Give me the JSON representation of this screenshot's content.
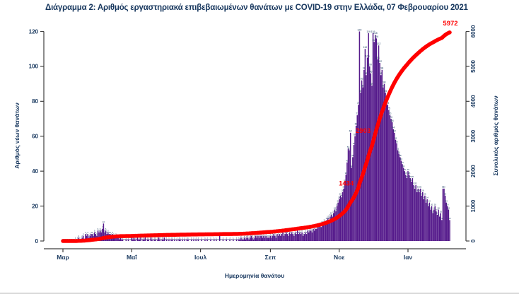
{
  "title": "Διάγραμμα 2: Αριθμός εργαστηριακά επιβεβαιωμένων θανάτων με COVID-19 στην Ελλάδα, 07 Φεβρουαρίου 2021",
  "colors": {
    "bars": "#551A8B",
    "line": "#FF0000",
    "text": "#17375E",
    "axis": "#3F3F3F"
  },
  "chart_data": {
    "type": "bar",
    "description": "Daily laboratory-confirmed COVID-19 deaths in Greece by date of death (bars, left axis) with cumulative total (red line, right axis), 01 Mar 2020 - 07 Feb 2021",
    "xlabel": "Ημερομηνία θανάτου",
    "ylabel_left": "Αριθμός νέων θανάτων",
    "ylabel_right": "Συνολικός αριθμός θανάτων",
    "x_start_date": "2020-03-01",
    "x_tick_labels": [
      "Μαρ",
      "Μαΐ",
      "Ιουλ",
      "Σεπ",
      "Νοε",
      "Ιαν"
    ],
    "x_tick_day_offsets": [
      0,
      61,
      122,
      184,
      245,
      306
    ],
    "y_left_ticks": [
      0,
      20,
      40,
      60,
      80,
      100,
      120
    ],
    "y_right_ticks": [
      0,
      1000,
      2000,
      3000,
      4000,
      5000,
      6000
    ],
    "ylim_left": [
      0,
      120
    ],
    "ylim_right": [
      0,
      6000
    ],
    "grid": false,
    "total_deaths": 5972,
    "annotations": [
      {
        "text": "1434",
        "value": 1434
      },
      {
        "text": "2903",
        "value": 2903
      },
      {
        "text": "5972",
        "value": 5972
      }
    ],
    "daily_deaths": [
      0,
      0,
      0,
      0,
      0,
      0,
      0,
      0,
      0,
      0,
      0,
      1,
      0,
      1,
      2,
      1,
      0,
      2,
      3,
      0,
      4,
      3,
      4,
      2,
      3,
      4,
      4,
      3,
      5,
      4,
      3,
      6,
      5,
      6,
      5,
      7,
      10,
      5,
      6,
      4,
      5,
      4,
      4,
      3,
      4,
      3,
      2,
      3,
      2,
      2,
      1,
      2,
      1,
      1,
      0,
      0,
      1,
      0,
      1,
      0,
      0,
      2,
      1,
      2,
      1,
      0,
      2,
      1,
      1,
      2,
      0,
      1,
      1,
      2,
      0,
      1,
      1,
      0,
      2,
      1,
      0,
      1,
      1,
      0,
      1,
      2,
      1,
      0,
      1,
      1,
      2,
      0,
      1,
      0,
      1,
      0,
      1,
      1,
      0,
      1,
      0,
      1,
      0,
      1,
      1,
      0,
      1,
      0,
      1,
      0,
      1,
      1,
      0,
      0,
      1,
      0,
      1,
      0,
      1,
      0,
      1,
      0,
      0,
      1,
      0,
      0,
      1,
      0,
      1,
      0,
      0,
      1,
      0,
      0,
      1,
      0,
      1,
      0,
      0,
      3,
      0,
      0,
      1,
      0,
      0,
      1,
      0,
      0,
      1,
      0,
      0,
      1,
      0,
      0,
      1,
      0,
      1,
      1,
      2,
      1,
      1,
      2,
      1,
      2,
      2,
      1,
      2,
      3,
      2,
      1,
      2,
      3,
      2,
      3,
      2,
      3,
      3,
      2,
      3,
      2,
      3,
      2,
      2,
      2,
      3,
      2,
      3,
      4,
      3,
      2,
      4,
      3,
      4,
      3,
      4,
      5,
      3,
      4,
      5,
      4,
      3,
      5,
      4,
      5,
      4,
      3,
      5,
      4,
      6,
      4,
      5,
      4,
      5,
      3,
      4,
      5,
      4,
      6,
      5,
      6,
      6,
      5,
      7,
      6,
      7,
      7,
      8,
      8,
      9,
      8,
      10,
      9,
      11,
      10,
      12,
      13,
      12,
      14,
      15,
      14,
      16,
      18,
      17,
      20,
      22,
      24,
      26,
      25,
      28,
      30,
      34,
      38,
      45,
      53,
      52,
      62,
      42,
      48,
      55,
      60,
      66,
      72,
      78,
      120,
      85,
      92,
      88,
      98,
      110,
      95,
      105,
      119,
      100,
      96,
      89,
      119,
      114,
      118,
      116,
      104,
      112,
      102,
      95,
      98,
      88,
      90,
      85,
      80,
      78,
      75,
      72,
      70,
      68,
      64,
      62,
      58,
      56,
      52,
      50,
      48,
      46,
      44,
      42,
      40,
      38,
      36,
      40,
      38,
      36,
      34,
      36,
      32,
      30,
      32,
      28,
      30,
      28,
      30,
      26,
      28,
      24,
      26,
      22,
      24,
      20,
      22,
      18,
      20,
      16,
      18,
      20,
      17,
      15,
      18,
      14,
      16,
      12,
      30,
      30,
      26,
      22,
      20,
      18,
      12
    ]
  }
}
